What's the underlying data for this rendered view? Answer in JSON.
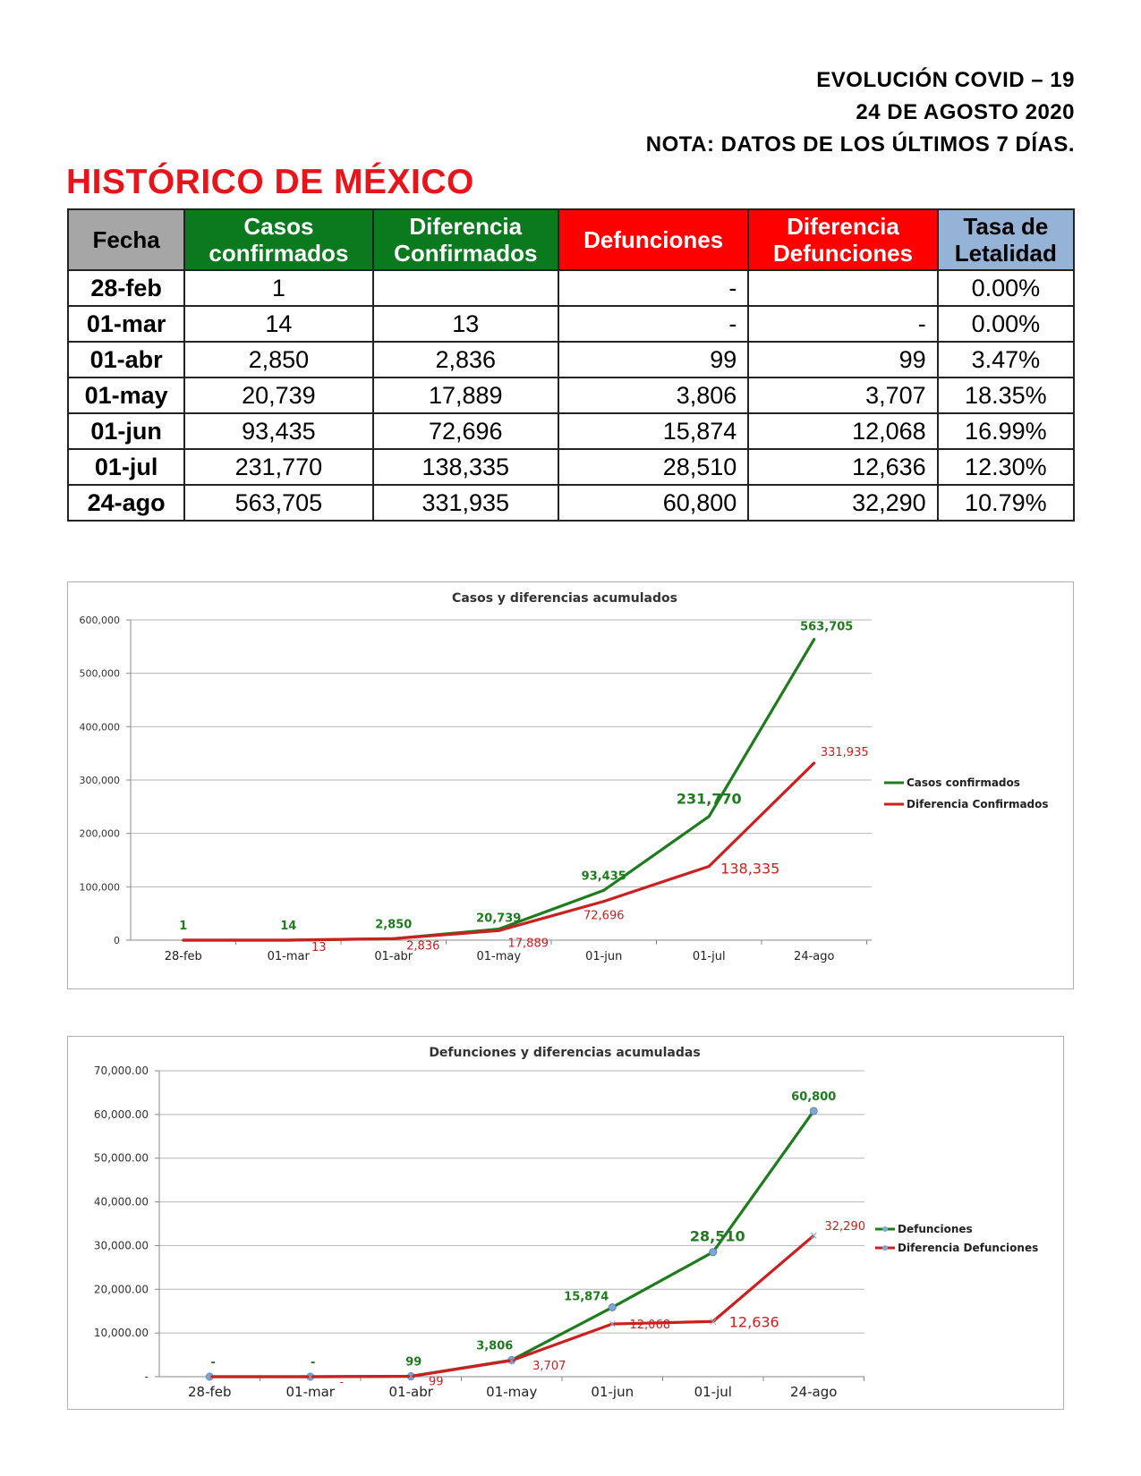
{
  "header": {
    "line1": "EVOLUCIÓN COVID – 19",
    "line2": "24 DE AGOSTO 2020",
    "line3": "NOTA: DATOS DE LOS ÚLTIMOS 7 DÍAS."
  },
  "title": "HISTÓRICO DE MÉXICO",
  "table": {
    "columns": [
      [
        "Fecha"
      ],
      [
        "Casos",
        "confirmados"
      ],
      [
        "Diferencia",
        "Confirmados"
      ],
      [
        "Defunciones"
      ],
      [
        "Diferencia",
        "Defunciones"
      ],
      [
        "Tasa de",
        "Letalidad"
      ]
    ],
    "rows": [
      [
        "28-feb",
        "1",
        "",
        "-",
        "",
        "0.00%"
      ],
      [
        "01-mar",
        "14",
        "13",
        "-",
        "-",
        "0.00%"
      ],
      [
        "01-abr",
        "2,850",
        "2,836",
        "99",
        "99",
        "3.47%"
      ],
      [
        "01-may",
        "20,739",
        "17,889",
        "3,806",
        "3,707",
        "18.35%"
      ],
      [
        "01-jun",
        "93,435",
        "72,696",
        "15,874",
        "12,068",
        "16.99%"
      ],
      [
        "01-jul",
        "231,770",
        "138,335",
        "28,510",
        "12,636",
        "12.30%"
      ],
      [
        "24-ago",
        "563,705",
        "331,935",
        "60,800",
        "32,290",
        "10.79%"
      ]
    ]
  },
  "colors": {
    "title_red": "#e8141b",
    "header_gray": "#a6a6a6",
    "header_green": "#0b7a1f",
    "header_red": "#ff0000",
    "header_blue": "#95b3d7",
    "line_green": "#1e7b1e",
    "line_red": "#cc1f1f",
    "marker_blue": "#7fa7d3"
  },
  "chart_data": [
    {
      "type": "line",
      "title": "Casos y diferencias acumulados",
      "categories": [
        "28-feb",
        "01-mar",
        "01-abr",
        "01-may",
        "01-jun",
        "01-jul",
        "24-ago"
      ],
      "ylim": [
        0,
        600000
      ],
      "yticks": [
        "0",
        "100,000",
        "200,000",
        "300,000",
        "400,000",
        "500,000",
        "600,000"
      ],
      "grid": true,
      "legend": "right",
      "series": [
        {
          "name": "Casos confirmados",
          "color": "#1e7b1e",
          "values": [
            1,
            14,
            2850,
            20739,
            93435,
            231770,
            563705
          ],
          "labels": [
            "1",
            "14",
            "2,850",
            "20,739",
            "93,435",
            "231,770",
            "563,705"
          ]
        },
        {
          "name": "Diferencia Confirmados",
          "color": "#cc1f1f",
          "values": [
            0,
            13,
            2836,
            17889,
            72696,
            138335,
            331935
          ],
          "labels": [
            "",
            "13",
            "2,836",
            "17,889",
            "72,696",
            "138,335",
            "331,935"
          ]
        }
      ]
    },
    {
      "type": "line",
      "title": "Defunciones y diferencias acumuladas",
      "categories": [
        "28-feb",
        "01-mar",
        "01-abr",
        "01-may",
        "01-jun",
        "01-jul",
        "24-ago"
      ],
      "ylim": [
        0,
        70000
      ],
      "yticks": [
        "-",
        "10,000.00",
        "20,000.00",
        "30,000.00",
        "40,000.00",
        "50,000.00",
        "60,000.00",
        "70,000.00"
      ],
      "grid": true,
      "legend": "right",
      "series": [
        {
          "name": "Defunciones",
          "color": "#1e7b1e",
          "values": [
            0,
            0,
            99,
            3806,
            15874,
            28510,
            60800
          ],
          "labels": [
            "-",
            "-",
            "99",
            "3,806",
            "15,874",
            "28,510",
            "60,800"
          ]
        },
        {
          "name": "Diferencia Defunciones",
          "color": "#cc1f1f",
          "values": [
            0,
            0,
            99,
            3707,
            12068,
            12636,
            32290
          ],
          "labels": [
            "",
            "-",
            "99",
            "3,707",
            "12,068",
            "12,636",
            "32,290"
          ]
        }
      ]
    }
  ]
}
